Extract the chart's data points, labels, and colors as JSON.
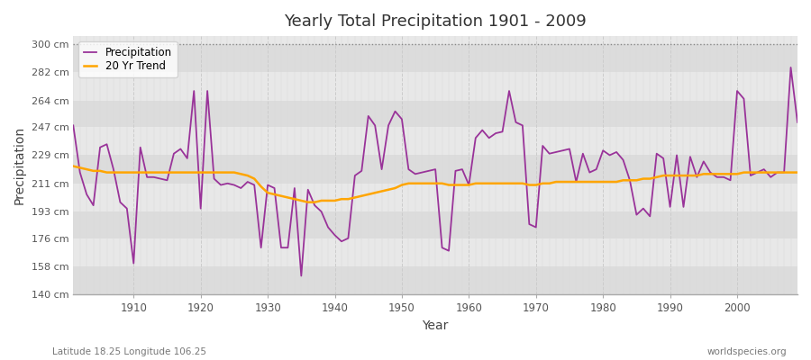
{
  "title": "Yearly Total Precipitation 1901 - 2009",
  "xlabel": "Year",
  "ylabel": "Precipitation",
  "subtitle_left": "Latitude 18.25 Longitude 106.25",
  "subtitle_right": "worldspecies.org",
  "ylim": [
    140,
    305
  ],
  "yticks": [
    140,
    158,
    176,
    193,
    211,
    229,
    247,
    264,
    282,
    300
  ],
  "ytick_labels": [
    "140 cm",
    "158 cm",
    "176 cm",
    "193 cm",
    "211 cm",
    "229 cm",
    "247 cm",
    "264 cm",
    "282 cm",
    "300 cm"
  ],
  "xlim": [
    1901,
    2009
  ],
  "xticks": [
    1910,
    1920,
    1930,
    1940,
    1950,
    1960,
    1970,
    1980,
    1990,
    2000
  ],
  "fig_bg_color": "#ffffff",
  "ax_bg_color": "#e8e8e8",
  "band_colors": [
    "#dcdcdc",
    "#e8e8e8"
  ],
  "precip_color": "#993399",
  "trend_color": "#ffa500",
  "precip_linewidth": 1.3,
  "trend_linewidth": 1.8,
  "legend_precip": "Precipitation",
  "legend_trend": "20 Yr Trend",
  "years": [
    1901,
    1902,
    1903,
    1904,
    1905,
    1906,
    1907,
    1908,
    1909,
    1910,
    1911,
    1912,
    1913,
    1914,
    1915,
    1916,
    1917,
    1918,
    1919,
    1920,
    1921,
    1922,
    1923,
    1924,
    1925,
    1926,
    1927,
    1928,
    1929,
    1930,
    1931,
    1932,
    1933,
    1934,
    1935,
    1936,
    1937,
    1938,
    1939,
    1940,
    1941,
    1942,
    1943,
    1944,
    1945,
    1946,
    1947,
    1948,
    1949,
    1950,
    1951,
    1952,
    1953,
    1954,
    1955,
    1956,
    1957,
    1958,
    1959,
    1960,
    1961,
    1962,
    1963,
    1964,
    1965,
    1966,
    1967,
    1968,
    1969,
    1970,
    1971,
    1972,
    1973,
    1974,
    1975,
    1976,
    1977,
    1978,
    1979,
    1980,
    1981,
    1982,
    1983,
    1984,
    1985,
    1986,
    1987,
    1988,
    1989,
    1990,
    1991,
    1992,
    1993,
    1994,
    1995,
    1996,
    1997,
    1998,
    1999,
    2000,
    2001,
    2002,
    2003,
    2004,
    2005,
    2006,
    2007,
    2008,
    2009
  ],
  "precip": [
    248,
    218,
    204,
    197,
    234,
    236,
    220,
    199,
    195,
    160,
    234,
    215,
    215,
    214,
    213,
    230,
    233,
    227,
    270,
    195,
    270,
    214,
    210,
    211,
    210,
    208,
    212,
    210,
    170,
    210,
    208,
    170,
    170,
    208,
    152,
    207,
    197,
    193,
    183,
    178,
    174,
    176,
    216,
    219,
    254,
    248,
    220,
    248,
    257,
    252,
    220,
    217,
    218,
    219,
    220,
    170,
    168,
    219,
    220,
    210,
    240,
    245,
    240,
    243,
    244,
    270,
    250,
    248,
    185,
    183,
    235,
    230,
    231,
    232,
    233,
    212,
    230,
    218,
    220,
    232,
    229,
    231,
    226,
    213,
    191,
    195,
    190,
    230,
    227,
    196,
    229,
    196,
    228,
    215,
    225,
    218,
    215,
    215,
    213,
    270,
    265,
    216,
    218,
    220,
    215,
    218,
    218,
    285,
    250
  ],
  "trend": [
    222,
    221,
    220,
    219,
    219,
    218,
    218,
    218,
    218,
    218,
    218,
    218,
    218,
    218,
    218,
    218,
    218,
    218,
    218,
    218,
    218,
    218,
    218,
    218,
    218,
    217,
    216,
    214,
    209,
    205,
    204,
    203,
    202,
    201,
    200,
    199,
    199,
    200,
    200,
    200,
    201,
    201,
    202,
    203,
    204,
    205,
    206,
    207,
    208,
    210,
    211,
    211,
    211,
    211,
    211,
    211,
    210,
    210,
    210,
    210,
    211,
    211,
    211,
    211,
    211,
    211,
    211,
    211,
    210,
    210,
    211,
    211,
    212,
    212,
    212,
    212,
    212,
    212,
    212,
    212,
    212,
    212,
    213,
    213,
    213,
    214,
    214,
    215,
    216,
    216,
    216,
    216,
    216,
    216,
    217,
    217,
    217,
    217,
    217,
    217,
    218,
    218,
    218,
    218,
    218,
    218,
    218,
    218,
    218
  ]
}
